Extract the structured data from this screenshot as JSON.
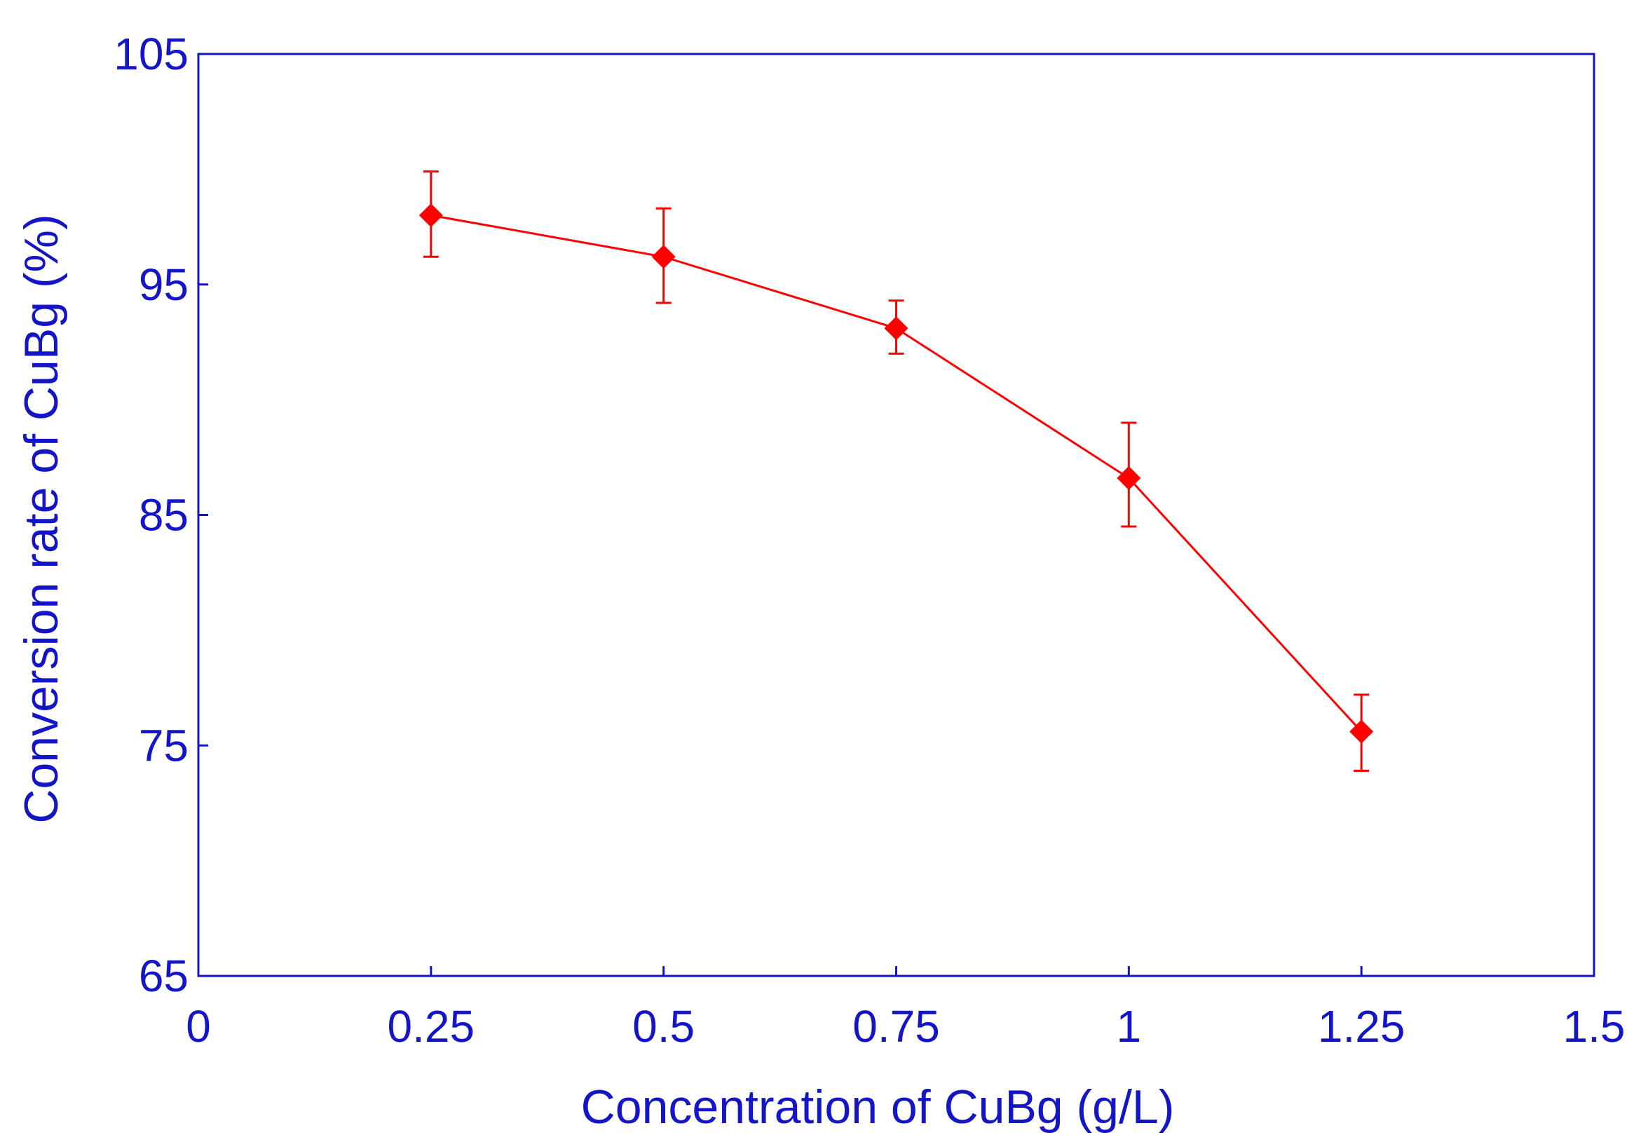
{
  "colors": {
    "axis": "#1414c8",
    "text": "#1414c8",
    "series": "#ff0000",
    "background": "#ffffff"
  },
  "chart_data": {
    "type": "line",
    "title": "",
    "xlabel": "Concentration of CuBg (g/L)",
    "ylabel": "Conversion rate of CuBg (%)",
    "xlim": [
      0,
      1.5
    ],
    "ylim": [
      65,
      105
    ],
    "x_ticks": [
      0,
      0.25,
      0.5,
      0.75,
      1,
      1.25,
      1.5
    ],
    "x_tick_labels": [
      "0",
      "0.25",
      "0.5",
      "0.75",
      "1",
      "1.25",
      "1.5"
    ],
    "y_ticks": [
      65,
      75,
      85,
      95,
      105
    ],
    "y_tick_labels": [
      "65",
      "75",
      "85",
      "95",
      "105"
    ],
    "grid": false,
    "legend": "none",
    "marker": "diamond",
    "series": [
      {
        "name": "Conversion rate",
        "x": [
          0.25,
          0.5,
          0.75,
          1,
          1.25
        ],
        "y": [
          98.0,
          96.2,
          93.1,
          86.6,
          75.6
        ],
        "error_low": [
          1.8,
          2.0,
          1.1,
          2.1,
          1.7
        ],
        "error_high": [
          1.9,
          2.1,
          1.2,
          2.4,
          1.6
        ]
      }
    ]
  }
}
